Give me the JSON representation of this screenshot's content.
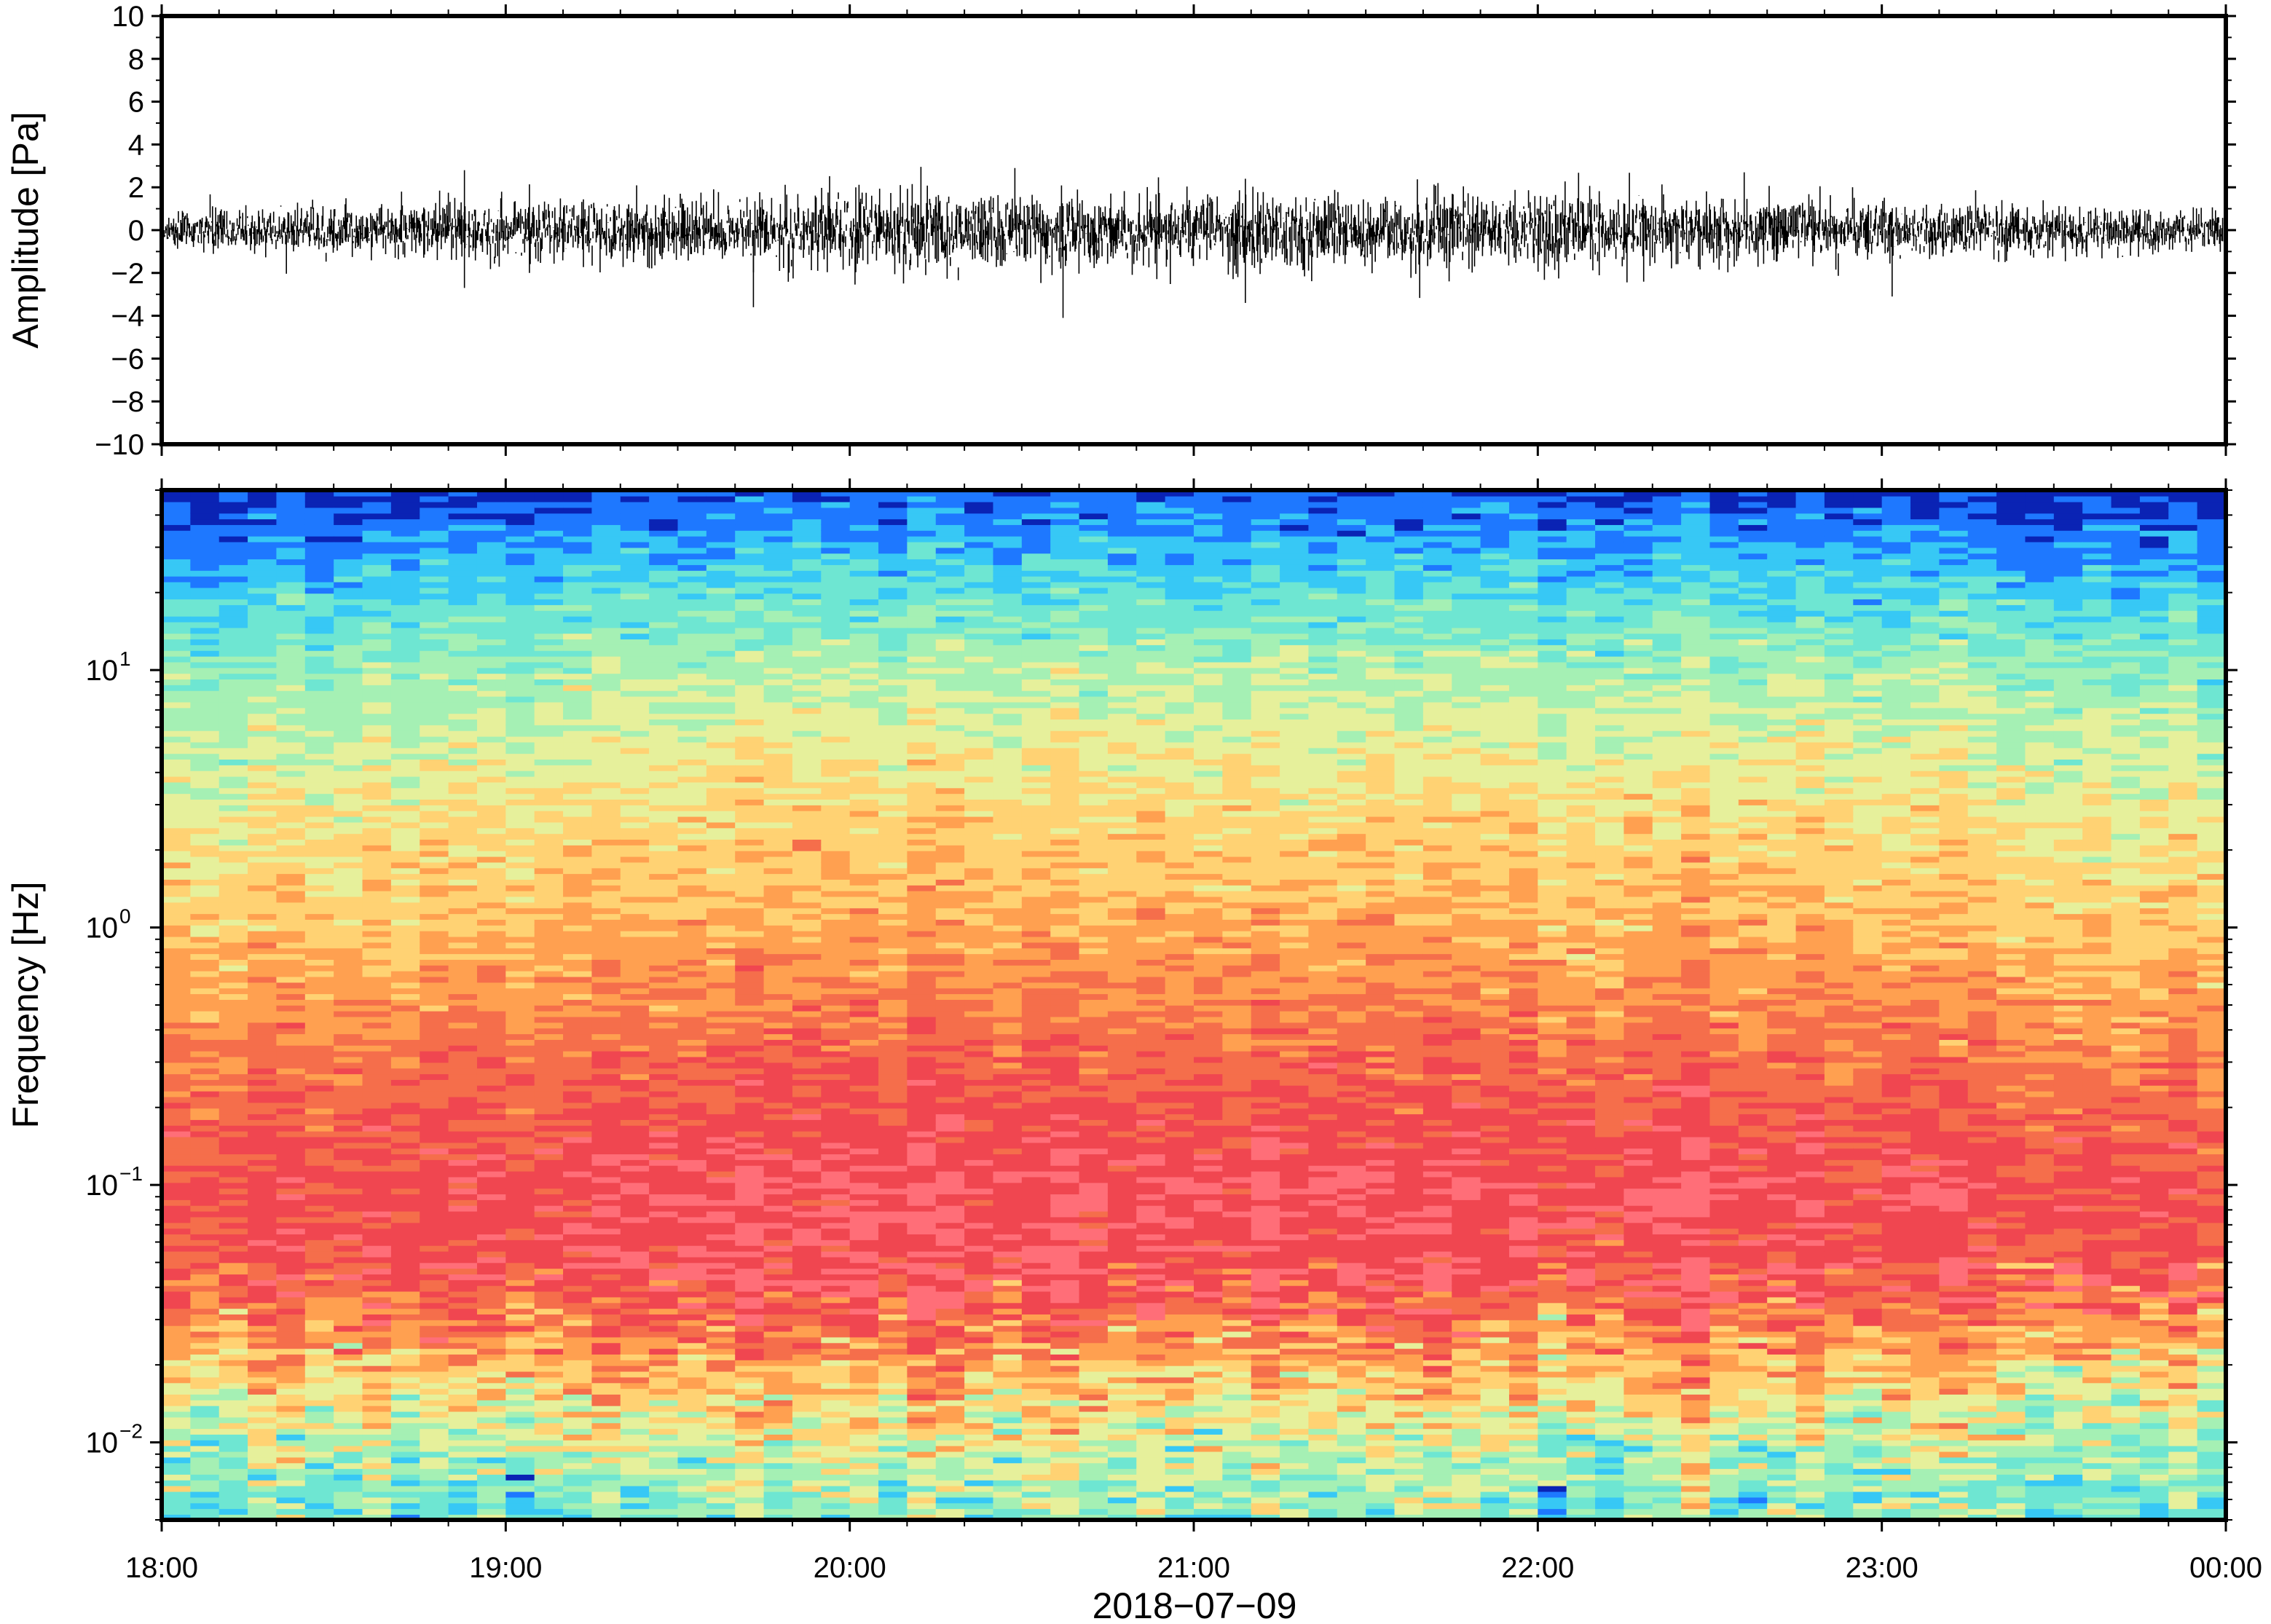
{
  "chart_data": [
    {
      "type": "line",
      "panel": "waveform",
      "ylabel": "Amplitude [Pa]",
      "ylim": [
        -10,
        10
      ],
      "yticks": [
        10,
        8,
        6,
        4,
        2,
        0,
        -2,
        -4,
        -6,
        -8,
        -10
      ],
      "ytick_labels": [
        "10",
        "8",
        "6",
        "4",
        "2",
        "0",
        "−2",
        "−4",
        "−6",
        "−8",
        "−10"
      ],
      "x_range_hours": [
        18,
        24
      ],
      "envelope": {
        "hours": [
          18.0,
          18.5,
          19.0,
          19.5,
          20.0,
          20.5,
          21.0,
          21.5,
          22.0,
          22.5,
          23.0,
          23.5,
          24.0
        ],
        "typical_abs_amplitude": [
          0.8,
          1.0,
          1.2,
          1.4,
          1.6,
          1.6,
          1.5,
          1.6,
          1.6,
          1.4,
          1.2,
          1.0,
          0.8
        ]
      },
      "peaks": [
        {
          "hour": 18.88,
          "value": 2.8
        },
        {
          "hour": 18.88,
          "value": -2.7
        },
        {
          "hour": 19.72,
          "value": -3.6
        },
        {
          "hour": 20.48,
          "value": 2.9
        },
        {
          "hour": 20.62,
          "value": -4.1
        },
        {
          "hour": 21.15,
          "value": -3.4
        },
        {
          "hour": 21.15,
          "value": 2.4
        },
        {
          "hour": 22.6,
          "value": 2.7
        },
        {
          "hour": 23.03,
          "value": -3.1
        }
      ]
    },
    {
      "type": "heatmap",
      "panel": "spectrogram",
      "ylabel": "Frequency [Hz]",
      "yscale": "log",
      "ylim": [
        0.005,
        50
      ],
      "yticks": [
        0.01,
        0.1,
        1,
        10
      ],
      "ytick_labels": [
        {
          "base": "10",
          "exp": "−2"
        },
        {
          "base": "10",
          "exp": "−1"
        },
        {
          "base": "10",
          "exp": "0"
        },
        {
          "base": "10",
          "exp": "1"
        }
      ],
      "colormap": [
        "#0a23b4",
        "#1e78ff",
        "#37c8f5",
        "#6ee6d2",
        "#a5f0b4",
        "#e6f09b",
        "#ffd273",
        "#ffa050",
        "#f56e4b",
        "#f04650",
        "#ff6e78"
      ],
      "frequency_profile": {
        "hz": [
          0.006,
          0.01,
          0.02,
          0.04,
          0.1,
          0.3,
          1,
          3,
          10,
          20,
          50
        ],
        "color_index": [
          3.5,
          4.5,
          6.5,
          8.8,
          9.2,
          8.0,
          6.5,
          5.5,
          4.0,
          2.5,
          0.3
        ]
      },
      "time_modulation": {
        "hours": [
          18.0,
          19.0,
          20.0,
          21.0,
          22.0,
          23.0,
          24.0
        ],
        "color_shift": [
          -0.4,
          0.0,
          0.3,
          0.3,
          0.2,
          0.0,
          -0.4
        ]
      },
      "xlabel": "2018−07−09",
      "xticks_hours": [
        18,
        19,
        20,
        21,
        22,
        23,
        24
      ],
      "xtick_labels": [
        "18:00",
        "19:00",
        "20:00",
        "21:00",
        "22:00",
        "23:00",
        "00:00"
      ]
    }
  ]
}
